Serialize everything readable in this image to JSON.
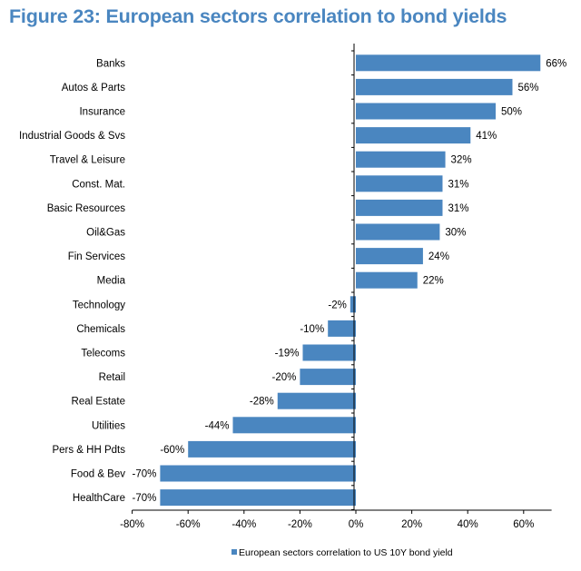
{
  "title": "Figure 23: European sectors correlation to bond yields",
  "colors": {
    "title": "#4a86c0",
    "bar": "#4a86c0",
    "axis": "#000000"
  },
  "chart_data": {
    "type": "bar",
    "orientation": "horizontal",
    "categories": [
      "Banks",
      "Autos & Parts",
      "Insurance",
      "Industrial Goods & Svs",
      "Travel & Leisure",
      "Const. Mat.",
      "Basic Resources",
      "Oil&Gas",
      "Fin Services",
      "Media",
      "Technology",
      "Chemicals",
      "Telecoms",
      "Retail",
      "Real Estate",
      "Utilities",
      "Pers & HH Pdts",
      "Food & Bev",
      "HealthCare"
    ],
    "series": [
      {
        "name": "European sectors correlation to US 10Y bond yield",
        "values": [
          66,
          56,
          50,
          41,
          32,
          31,
          31,
          30,
          24,
          22,
          -2,
          -10,
          -19,
          -20,
          -28,
          -44,
          -60,
          -70,
          -70
        ]
      }
    ],
    "data_labels": [
      "66%",
      "56%",
      "50%",
      "41%",
      "32%",
      "31%",
      "31%",
      "30%",
      "24%",
      "22%",
      "-2%",
      "-10%",
      "-19%",
      "-20%",
      "-28%",
      "-44%",
      "-60%",
      "-70%",
      "-70%"
    ],
    "x_ticks": [
      -80,
      -60,
      -40,
      -20,
      0,
      20,
      40,
      60
    ],
    "x_tick_labels": [
      "-80%",
      "-60%",
      "-40%",
      "-20%",
      "0%",
      "20%",
      "40%",
      "60%"
    ],
    "xlim": [
      -80,
      70
    ],
    "grid": false,
    "legend_position": "bottom"
  }
}
